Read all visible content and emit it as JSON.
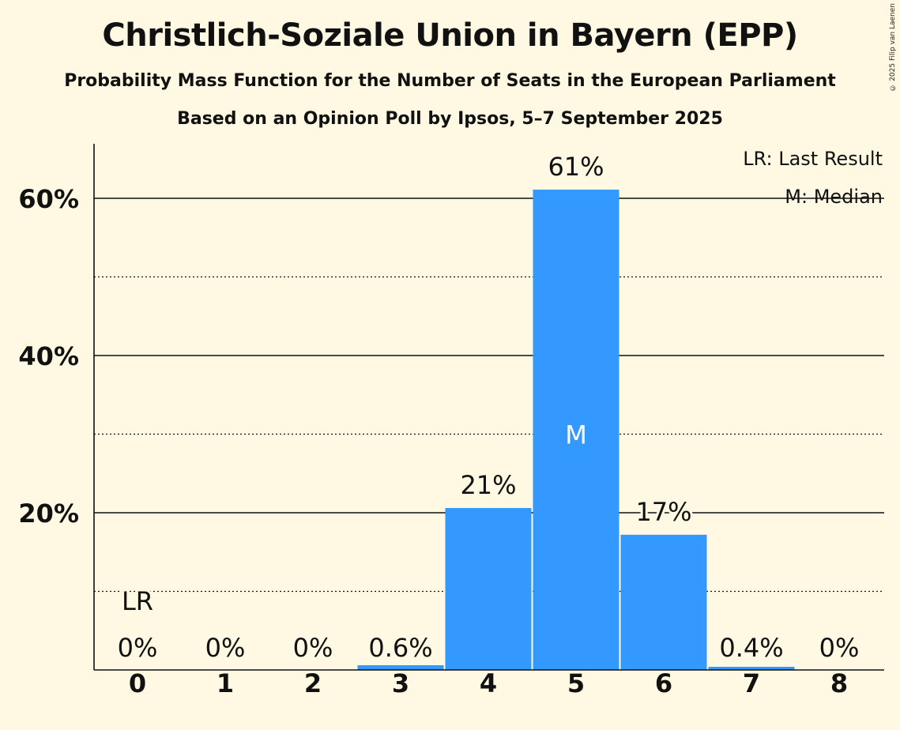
{
  "title": "Christlich-Soziale Union in Bayern (EPP)",
  "subtitle": "Probability Mass Function for the Number of Seats in the European Parliament",
  "subtitle2": "Based on an Opinion Poll by Ipsos, 5–7 September 2025",
  "copyright": "© 2025 Filip van Laenen",
  "legend": {
    "last_result": "LR: Last Result",
    "median": "M: Median"
  },
  "colors": {
    "bar": "#3399FF",
    "background": "#FFF8E2",
    "text": "#111111"
  },
  "chart_data": {
    "type": "bar",
    "categories": [
      "0",
      "1",
      "2",
      "3",
      "4",
      "5",
      "6",
      "7",
      "8"
    ],
    "values": [
      0,
      0,
      0,
      0.6,
      20.6,
      61.1,
      17.2,
      0.4,
      0
    ],
    "value_labels": [
      "0%",
      "0%",
      "0%",
      "0.6%",
      "21%",
      "61%",
      "17%",
      "0.4%",
      "0%"
    ],
    "ylim": [
      0,
      67
    ],
    "y_ticks_major": [
      20,
      40,
      60
    ],
    "y_ticks_minor": [
      10,
      30,
      50
    ],
    "y_tick_labels": [
      "20%",
      "40%",
      "60%"
    ],
    "last_result_index": 0,
    "last_result_label": "LR",
    "median_index": 5,
    "median_label": "M",
    "grid": true,
    "legend_position": "top-right"
  }
}
